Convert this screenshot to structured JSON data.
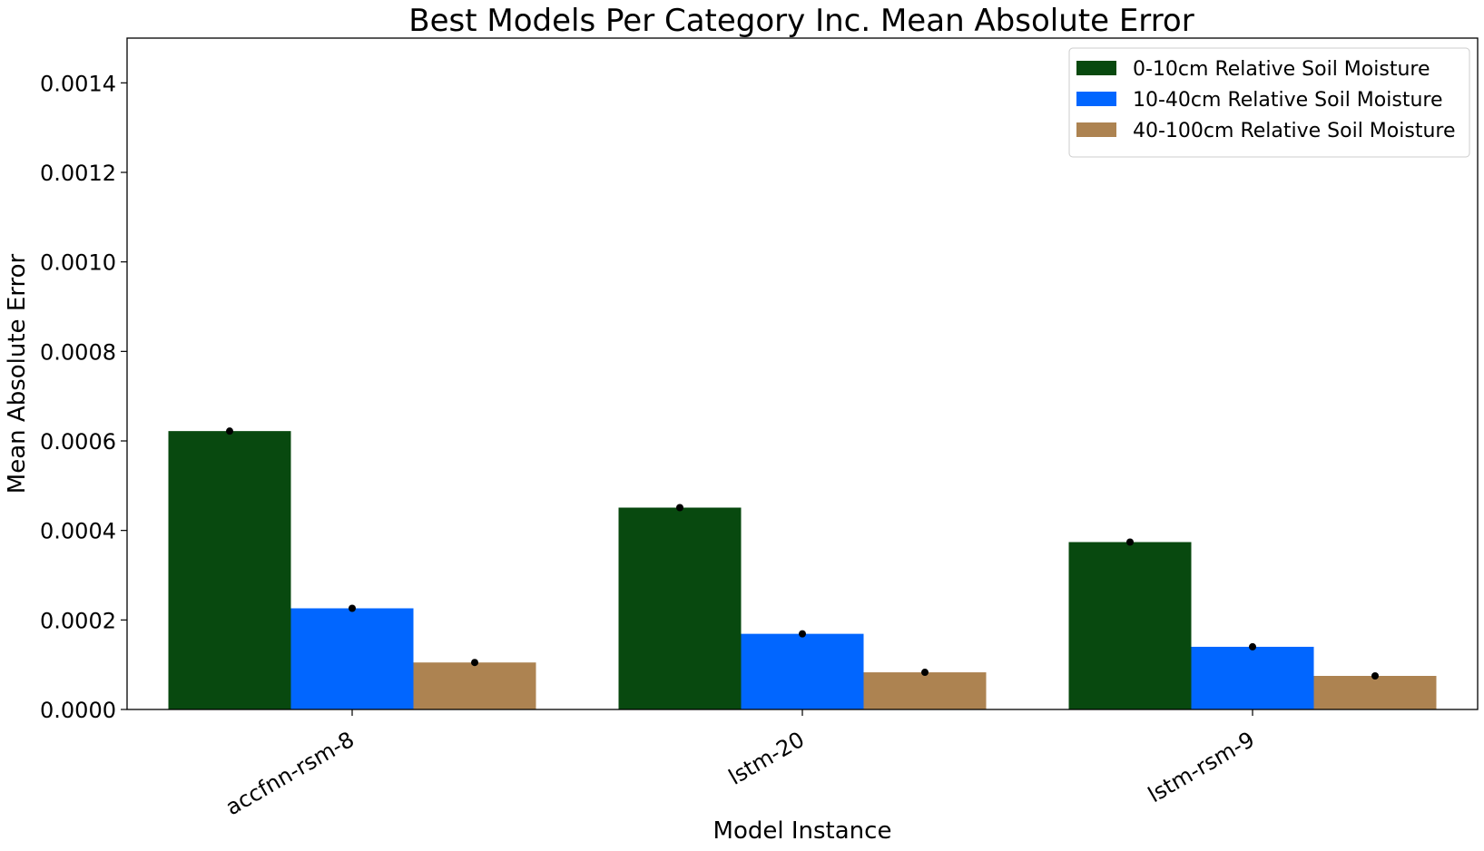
{
  "chart_data": {
    "type": "bar",
    "title": "Best Models Per Category Inc. Mean Absolute Error",
    "xlabel": "Model Instance",
    "ylabel": "Mean Absolute Error",
    "categories": [
      "accfnn-rsm-8",
      "lstm-20",
      "lstm-rsm-9"
    ],
    "series": [
      {
        "name": "0-10cm Relative Soil Moisture",
        "color": "#08490f",
        "values": [
          0.000622,
          0.000451,
          0.000374
        ]
      },
      {
        "name": "10-40cm Relative Soil Moisture",
        "color": "#0166ff",
        "values": [
          0.000226,
          0.000169,
          0.00014
        ]
      },
      {
        "name": "40-100cm Relative Soil Moisture",
        "color": "#ad8351",
        "values": [
          0.000105,
          8.3e-05,
          7.5e-05
        ]
      }
    ],
    "error_marker_color": "#000000",
    "ylim": [
      0,
      0.0015
    ],
    "yticks": [
      0.0,
      0.0002,
      0.0004,
      0.0006,
      0.0008,
      0.001,
      0.0012,
      0.0014
    ],
    "ytick_labels": [
      "0.0000",
      "0.0002",
      "0.0004",
      "0.0006",
      "0.0008",
      "0.0010",
      "0.0012",
      "0.0014"
    ],
    "grid": false,
    "legend_position": "top-right"
  }
}
